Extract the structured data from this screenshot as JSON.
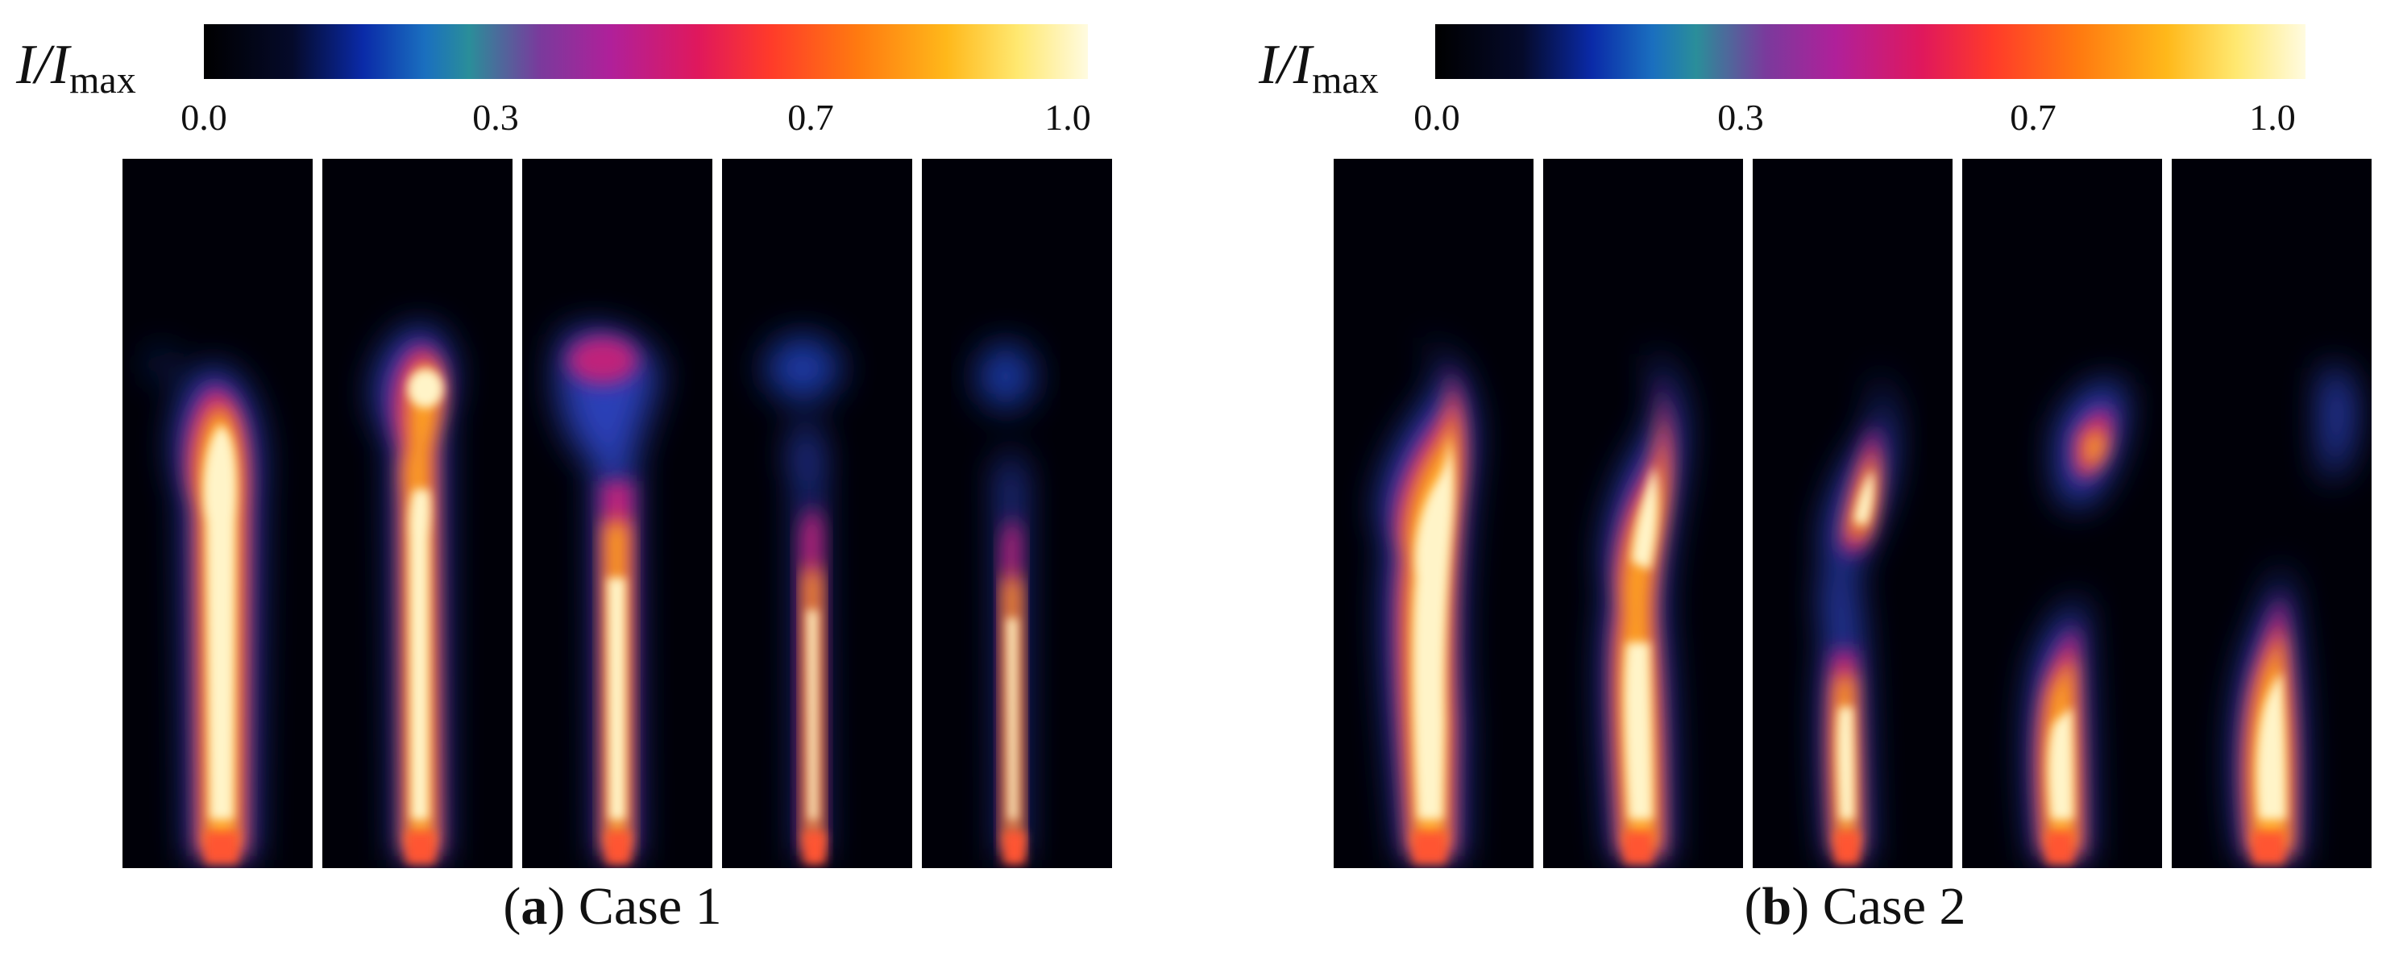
{
  "colorbar": {
    "label_main": "I/I",
    "label_sub": "max",
    "ticks": [
      "0.0",
      "0.3",
      "0.7",
      "1.0"
    ]
  },
  "panels": [
    {
      "letter": "a",
      "caption_text": "Case 1",
      "frame_count": 5
    },
    {
      "letter": "b",
      "caption_text": "Case 2",
      "frame_count": 5
    }
  ]
}
